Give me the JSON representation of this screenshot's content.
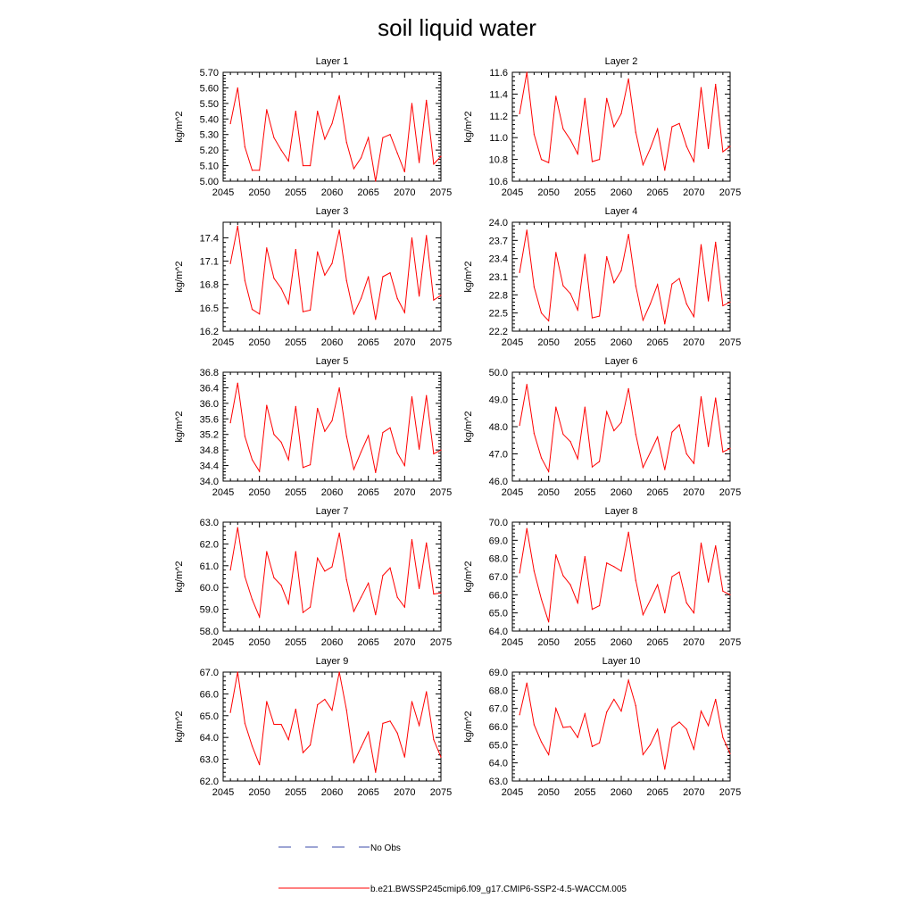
{
  "figure": {
    "title": "soil liquid water"
  },
  "legend": {
    "position": "bottom-center",
    "entries": [
      {
        "label": "No Obs",
        "color": "#3b4ba8",
        "style": "dashed"
      },
      {
        "label": "b.e21.BWSSP245cmip6.f09_g17.CMIP6-SSP2-4.5-WACCM.005",
        "color": "#ff0000",
        "style": "solid"
      }
    ]
  },
  "chart_data": [
    {
      "type": "line",
      "title": "Layer 1",
      "ylabel": "kg/m^2",
      "xlabel": "",
      "xlim": [
        2045,
        2075
      ],
      "ylim": [
        5.0,
        5.7
      ],
      "x": [
        2046,
        2047,
        2048,
        2049,
        2050,
        2051,
        2052,
        2053,
        2054,
        2055,
        2056,
        2057,
        2058,
        2059,
        2060,
        2061,
        2062,
        2063,
        2064,
        2065,
        2066,
        2067,
        2068,
        2069,
        2070,
        2071,
        2072,
        2073,
        2074,
        2075
      ],
      "xticks": [
        2045,
        2050,
        2055,
        2060,
        2065,
        2070,
        2075
      ],
      "yticks": [
        5.0,
        5.1,
        5.2,
        5.3,
        5.4,
        5.5,
        5.6,
        5.7
      ],
      "ytick_labels": [
        "5.00",
        "5.10",
        "5.20",
        "5.30",
        "5.40",
        "5.50",
        "5.60",
        "5.70"
      ],
      "series": [
        {
          "color": "#ff0000",
          "values": [
            5.37,
            5.6,
            5.22,
            5.07,
            5.07,
            5.46,
            5.28,
            5.2,
            5.13,
            5.45,
            5.1,
            5.1,
            5.45,
            5.27,
            5.37,
            5.55,
            5.25,
            5.08,
            5.15,
            5.28,
            5.0,
            5.28,
            5.3,
            5.18,
            5.06,
            5.5,
            5.12,
            5.52,
            5.11,
            5.16
          ]
        }
      ]
    },
    {
      "type": "line",
      "title": "Layer 2",
      "ylabel": "kg/m^2",
      "xlabel": "",
      "xlim": [
        2045,
        2075
      ],
      "ylim": [
        10.6,
        11.6
      ],
      "x": [
        2046,
        2047,
        2048,
        2049,
        2050,
        2051,
        2052,
        2053,
        2054,
        2055,
        2056,
        2057,
        2058,
        2059,
        2060,
        2061,
        2062,
        2063,
        2064,
        2065,
        2066,
        2067,
        2068,
        2069,
        2070,
        2071,
        2072,
        2073,
        2074,
        2075
      ],
      "xticks": [
        2045,
        2050,
        2055,
        2060,
        2065,
        2070,
        2075
      ],
      "yticks": [
        10.6,
        10.8,
        11.0,
        11.2,
        11.4,
        11.6
      ],
      "ytick_labels": [
        "10.6",
        "10.8",
        "11.0",
        "11.2",
        "11.4",
        "11.6"
      ],
      "series": [
        {
          "color": "#ff0000",
          "values": [
            11.22,
            11.6,
            11.03,
            10.8,
            10.77,
            11.38,
            11.08,
            10.98,
            10.85,
            11.36,
            10.78,
            10.8,
            11.36,
            11.1,
            11.22,
            11.54,
            11.05,
            10.75,
            10.9,
            11.08,
            10.7,
            11.1,
            11.13,
            10.92,
            10.78,
            11.46,
            10.9,
            11.49,
            10.87,
            10.92
          ]
        }
      ]
    },
    {
      "type": "line",
      "title": "Layer 3",
      "ylabel": "kg/m^2",
      "xlabel": "",
      "xlim": [
        2045,
        2075
      ],
      "ylim": [
        16.2,
        17.6
      ],
      "x": [
        2046,
        2047,
        2048,
        2049,
        2050,
        2051,
        2052,
        2053,
        2054,
        2055,
        2056,
        2057,
        2058,
        2059,
        2060,
        2061,
        2062,
        2063,
        2064,
        2065,
        2066,
        2067,
        2068,
        2069,
        2070,
        2071,
        2072,
        2073,
        2074,
        2075
      ],
      "xticks": [
        2045,
        2050,
        2055,
        2060,
        2065,
        2070,
        2075
      ],
      "yticks": [
        16.2,
        16.5,
        16.8,
        17.1,
        17.4
      ],
      "ytick_labels": [
        "16.2",
        "16.5",
        "16.8",
        "17.1",
        "17.4"
      ],
      "series": [
        {
          "color": "#ff0000",
          "values": [
            17.07,
            17.55,
            16.85,
            16.48,
            16.42,
            17.27,
            16.88,
            16.75,
            16.55,
            17.25,
            16.45,
            16.47,
            17.22,
            16.92,
            17.07,
            17.5,
            16.85,
            16.42,
            16.62,
            16.9,
            16.35,
            16.9,
            16.95,
            16.62,
            16.44,
            17.4,
            16.65,
            17.43,
            16.6,
            16.66
          ]
        }
      ]
    },
    {
      "type": "line",
      "title": "Layer 4",
      "ylabel": "kg/m^2",
      "xlabel": "",
      "xlim": [
        2045,
        2075
      ],
      "ylim": [
        22.2,
        24.0
      ],
      "x": [
        2046,
        2047,
        2048,
        2049,
        2050,
        2051,
        2052,
        2053,
        2054,
        2055,
        2056,
        2057,
        2058,
        2059,
        2060,
        2061,
        2062,
        2063,
        2064,
        2065,
        2066,
        2067,
        2068,
        2069,
        2070,
        2071,
        2072,
        2073,
        2074,
        2075
      ],
      "xticks": [
        2045,
        2050,
        2055,
        2060,
        2065,
        2070,
        2075
      ],
      "yticks": [
        22.2,
        22.5,
        22.8,
        23.1,
        23.4,
        23.7,
        24.0
      ],
      "ytick_labels": [
        "22.2",
        "22.5",
        "22.8",
        "23.1",
        "23.4",
        "23.7",
        "24.0"
      ],
      "series": [
        {
          "color": "#ff0000",
          "values": [
            23.17,
            23.87,
            22.93,
            22.5,
            22.37,
            23.5,
            22.95,
            22.82,
            22.55,
            23.47,
            22.42,
            22.45,
            23.43,
            23.0,
            23.2,
            23.8,
            22.95,
            22.38,
            22.65,
            22.97,
            22.32,
            22.98,
            23.07,
            22.65,
            22.44,
            23.63,
            22.7,
            23.67,
            22.62,
            22.68
          ]
        }
      ]
    },
    {
      "type": "line",
      "title": "Layer 5",
      "ylabel": "kg/m^2",
      "xlabel": "",
      "xlim": [
        2045,
        2075
      ],
      "ylim": [
        34.0,
        36.8
      ],
      "x": [
        2046,
        2047,
        2048,
        2049,
        2050,
        2051,
        2052,
        2053,
        2054,
        2055,
        2056,
        2057,
        2058,
        2059,
        2060,
        2061,
        2062,
        2063,
        2064,
        2065,
        2066,
        2067,
        2068,
        2069,
        2070,
        2071,
        2072,
        2073,
        2074,
        2075
      ],
      "xticks": [
        2045,
        2050,
        2055,
        2060,
        2065,
        2070,
        2075
      ],
      "yticks": [
        34.0,
        34.4,
        34.8,
        35.2,
        35.6,
        36.0,
        36.4,
        36.8
      ],
      "ytick_labels": [
        "34.0",
        "34.4",
        "34.8",
        "35.2",
        "35.6",
        "36.0",
        "36.4",
        "36.8"
      ],
      "series": [
        {
          "color": "#ff0000",
          "values": [
            35.5,
            36.52,
            35.15,
            34.55,
            34.25,
            35.95,
            35.2,
            35.0,
            34.55,
            35.92,
            34.35,
            34.42,
            35.87,
            35.28,
            35.55,
            36.4,
            35.15,
            34.3,
            34.75,
            35.17,
            34.22,
            35.25,
            35.37,
            34.72,
            34.4,
            36.17,
            34.82,
            36.2,
            34.7,
            34.8
          ]
        }
      ]
    },
    {
      "type": "line",
      "title": "Layer 6",
      "ylabel": "kg/m^2",
      "xlabel": "",
      "xlim": [
        2045,
        2075
      ],
      "ylim": [
        46.0,
        50.0
      ],
      "x": [
        2046,
        2047,
        2048,
        2049,
        2050,
        2051,
        2052,
        2053,
        2054,
        2055,
        2056,
        2057,
        2058,
        2059,
        2060,
        2061,
        2062,
        2063,
        2064,
        2065,
        2066,
        2067,
        2068,
        2069,
        2070,
        2071,
        2072,
        2073,
        2074,
        2075
      ],
      "xticks": [
        2045,
        2050,
        2055,
        2060,
        2065,
        2070,
        2075
      ],
      "yticks": [
        46.0,
        47.0,
        48.0,
        49.0,
        50.0
      ],
      "ytick_labels": [
        "46.0",
        "47.0",
        "48.0",
        "49.0",
        "50.0"
      ],
      "series": [
        {
          "color": "#ff0000",
          "values": [
            48.05,
            49.55,
            47.75,
            46.85,
            46.35,
            48.72,
            47.72,
            47.45,
            46.82,
            48.72,
            46.52,
            46.72,
            48.55,
            47.85,
            48.15,
            49.4,
            47.72,
            46.5,
            47.05,
            47.62,
            46.42,
            47.8,
            48.07,
            47.0,
            46.65,
            49.1,
            47.27,
            49.05,
            47.07,
            47.2
          ]
        }
      ]
    },
    {
      "type": "line",
      "title": "Layer 7",
      "ylabel": "kg/m^2",
      "xlabel": "",
      "xlim": [
        2045,
        2075
      ],
      "ylim": [
        58.0,
        63.0
      ],
      "x": [
        2046,
        2047,
        2048,
        2049,
        2050,
        2051,
        2052,
        2053,
        2054,
        2055,
        2056,
        2057,
        2058,
        2059,
        2060,
        2061,
        2062,
        2063,
        2064,
        2065,
        2066,
        2067,
        2068,
        2069,
        2070,
        2071,
        2072,
        2073,
        2074,
        2075
      ],
      "xticks": [
        2045,
        2050,
        2055,
        2060,
        2065,
        2070,
        2075
      ],
      "yticks": [
        58.0,
        59.0,
        60.0,
        61.0,
        62.0,
        63.0
      ],
      "ytick_labels": [
        "58.0",
        "59.0",
        "60.0",
        "61.0",
        "62.0",
        "63.0"
      ],
      "series": [
        {
          "color": "#ff0000",
          "values": [
            60.8,
            62.75,
            60.5,
            59.45,
            58.65,
            61.65,
            60.45,
            60.1,
            59.25,
            61.65,
            58.85,
            59.1,
            61.35,
            60.75,
            60.95,
            62.5,
            60.35,
            58.9,
            59.55,
            60.2,
            58.75,
            60.55,
            60.9,
            59.55,
            59.1,
            62.2,
            59.95,
            62.05,
            59.7,
            59.75
          ]
        }
      ]
    },
    {
      "type": "line",
      "title": "Layer 8",
      "ylabel": "kg/m^2",
      "xlabel": "",
      "xlim": [
        2045,
        2075
      ],
      "ylim": [
        64.0,
        70.0
      ],
      "x": [
        2046,
        2047,
        2048,
        2049,
        2050,
        2051,
        2052,
        2053,
        2054,
        2055,
        2056,
        2057,
        2058,
        2059,
        2060,
        2061,
        2062,
        2063,
        2064,
        2065,
        2066,
        2067,
        2068,
        2069,
        2070,
        2071,
        2072,
        2073,
        2074,
        2075
      ],
      "xticks": [
        2045,
        2050,
        2055,
        2060,
        2065,
        2070,
        2075
      ],
      "yticks": [
        64.0,
        65.0,
        66.0,
        67.0,
        68.0,
        69.0,
        70.0
      ],
      "ytick_labels": [
        "64.0",
        "65.0",
        "66.0",
        "67.0",
        "68.0",
        "69.0",
        "70.0"
      ],
      "series": [
        {
          "color": "#ff0000",
          "values": [
            67.2,
            69.65,
            67.3,
            65.75,
            64.5,
            68.2,
            67.05,
            66.55,
            65.55,
            68.1,
            65.2,
            65.4,
            67.75,
            67.55,
            67.3,
            69.45,
            66.8,
            64.9,
            65.7,
            66.55,
            65.0,
            67.0,
            67.25,
            65.55,
            65.0,
            68.85,
            66.7,
            68.7,
            66.2,
            66.0
          ]
        }
      ]
    },
    {
      "type": "line",
      "title": "Layer 9",
      "ylabel": "kg/m^2",
      "xlabel": "",
      "xlim": [
        2045,
        2075
      ],
      "ylim": [
        62.0,
        67.0
      ],
      "x": [
        2046,
        2047,
        2048,
        2049,
        2050,
        2051,
        2052,
        2053,
        2054,
        2055,
        2056,
        2057,
        2058,
        2059,
        2060,
        2061,
        2062,
        2063,
        2064,
        2065,
        2066,
        2067,
        2068,
        2069,
        2070,
        2071,
        2072,
        2073,
        2074,
        2075
      ],
      "xticks": [
        2045,
        2050,
        2055,
        2060,
        2065,
        2070,
        2075
      ],
      "yticks": [
        62.0,
        63.0,
        64.0,
        65.0,
        66.0,
        67.0
      ],
      "ytick_labels": [
        "62.0",
        "63.0",
        "64.0",
        "65.0",
        "66.0",
        "67.0"
      ],
      "series": [
        {
          "color": "#ff0000",
          "values": [
            65.15,
            67.0,
            64.65,
            63.6,
            62.75,
            65.65,
            64.6,
            64.6,
            63.9,
            65.3,
            63.3,
            63.65,
            65.5,
            65.75,
            65.25,
            67.0,
            65.25,
            62.85,
            63.55,
            64.25,
            62.4,
            64.65,
            64.75,
            64.2,
            63.1,
            65.65,
            64.55,
            66.1,
            63.9,
            63.1
          ]
        }
      ]
    },
    {
      "type": "line",
      "title": "Layer 10",
      "ylabel": "kg/m^2",
      "xlabel": "",
      "xlim": [
        2045,
        2075
      ],
      "ylim": [
        63.0,
        69.0
      ],
      "x": [
        2046,
        2047,
        2048,
        2049,
        2050,
        2051,
        2052,
        2053,
        2054,
        2055,
        2056,
        2057,
        2058,
        2059,
        2060,
        2061,
        2062,
        2063,
        2064,
        2065,
        2066,
        2067,
        2068,
        2069,
        2070,
        2071,
        2072,
        2073,
        2074,
        2075
      ],
      "xticks": [
        2045,
        2050,
        2055,
        2060,
        2065,
        2070,
        2075
      ],
      "yticks": [
        63.0,
        64.0,
        65.0,
        66.0,
        67.0,
        68.0,
        69.0
      ],
      "ytick_labels": [
        "63.0",
        "64.0",
        "65.0",
        "66.0",
        "67.0",
        "68.0",
        "69.0"
      ],
      "series": [
        {
          "color": "#ff0000",
          "values": [
            66.65,
            68.4,
            66.1,
            65.15,
            64.45,
            67.0,
            65.95,
            66.0,
            65.4,
            66.7,
            64.9,
            65.1,
            66.8,
            67.5,
            66.85,
            68.55,
            67.15,
            64.45,
            65.0,
            65.85,
            63.65,
            65.95,
            66.25,
            65.85,
            64.75,
            66.85,
            66.05,
            67.5,
            65.4,
            64.5
          ]
        }
      ]
    }
  ]
}
